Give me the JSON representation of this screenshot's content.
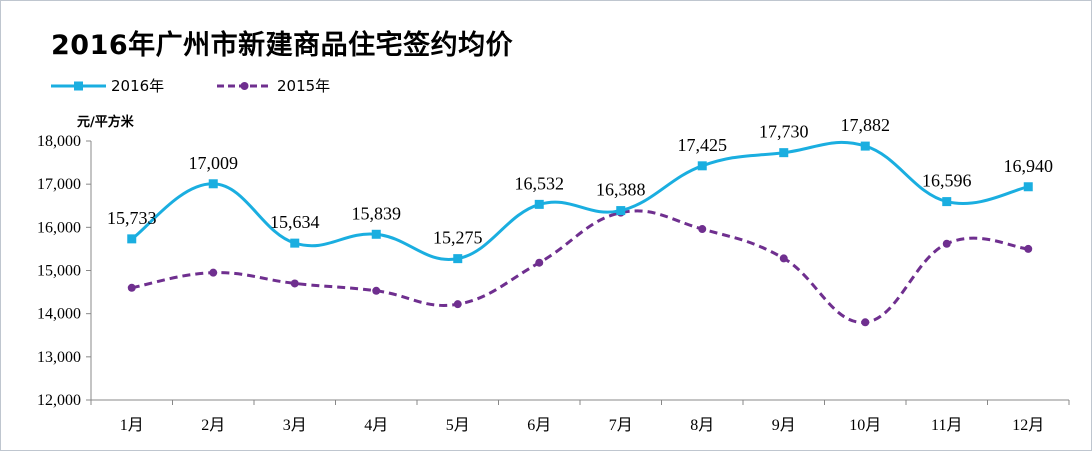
{
  "chart_data": {
    "type": "line",
    "title": "2016年广州市新建商品住宅签约均价",
    "ylabel": "元/平方米",
    "xlabel": "",
    "categories": [
      "1月",
      "2月",
      "3月",
      "4月",
      "5月",
      "6月",
      "7月",
      "8月",
      "9月",
      "10月",
      "11月",
      "12月"
    ],
    "ylim": [
      12000,
      18000
    ],
    "yticks": [
      12000,
      13000,
      14000,
      15000,
      16000,
      17000,
      18000
    ],
    "ytick_labels": [
      "12,000",
      "13,000",
      "14,000",
      "15,000",
      "16,000",
      "17,000",
      "18,000"
    ],
    "grid": false,
    "legend_position": "top-left",
    "series": [
      {
        "name": "2016年",
        "color": "#1aaee0",
        "line_style": "solid",
        "marker": "square",
        "values": [
          15733,
          17009,
          15634,
          15839,
          15275,
          16532,
          16388,
          17425,
          17730,
          17882,
          16596,
          16940
        ],
        "data_labels": [
          "15,733",
          "17,009",
          "15,634",
          "15,839",
          "15,275",
          "16,532",
          "16,388",
          "17,425",
          "17,730",
          "17,882",
          "16,596",
          "16,940"
        ]
      },
      {
        "name": "2015年",
        "color": "#6f2f8f",
        "line_style": "dashed",
        "marker": "circle",
        "values": [
          14600,
          14950,
          14700,
          14530,
          14220,
          15180,
          16340,
          15960,
          15280,
          13800,
          15620,
          15500
        ]
      }
    ]
  }
}
